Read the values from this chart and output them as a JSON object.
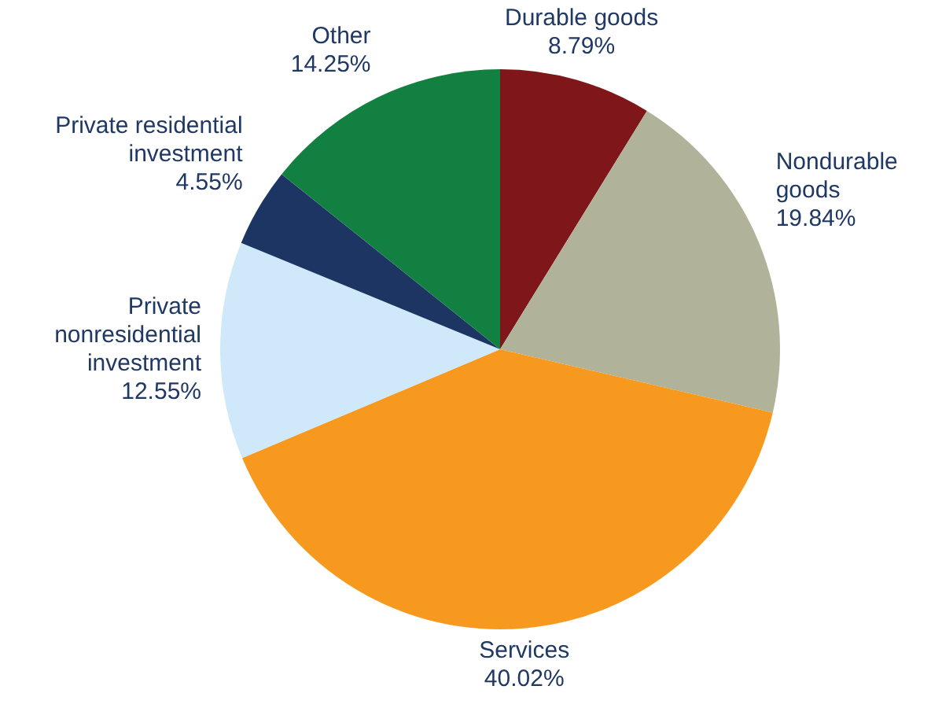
{
  "chart_data": {
    "type": "pie",
    "categories": [
      "Durable goods",
      "Nondurable goods",
      "Services",
      "Private nonresidential investment",
      "Private residential investment",
      "Other"
    ],
    "values": [
      8.79,
      19.84,
      40.02,
      12.55,
      4.55,
      14.25
    ],
    "colors": [
      "#7f1619",
      "#b0b29a",
      "#f7991f",
      "#cfe9fa",
      "#1c3563",
      "#128041"
    ],
    "value_labels": [
      "8.79%",
      "19.84%",
      "40.02%",
      "12.55%",
      "4.55%",
      "14.25%"
    ]
  }
}
